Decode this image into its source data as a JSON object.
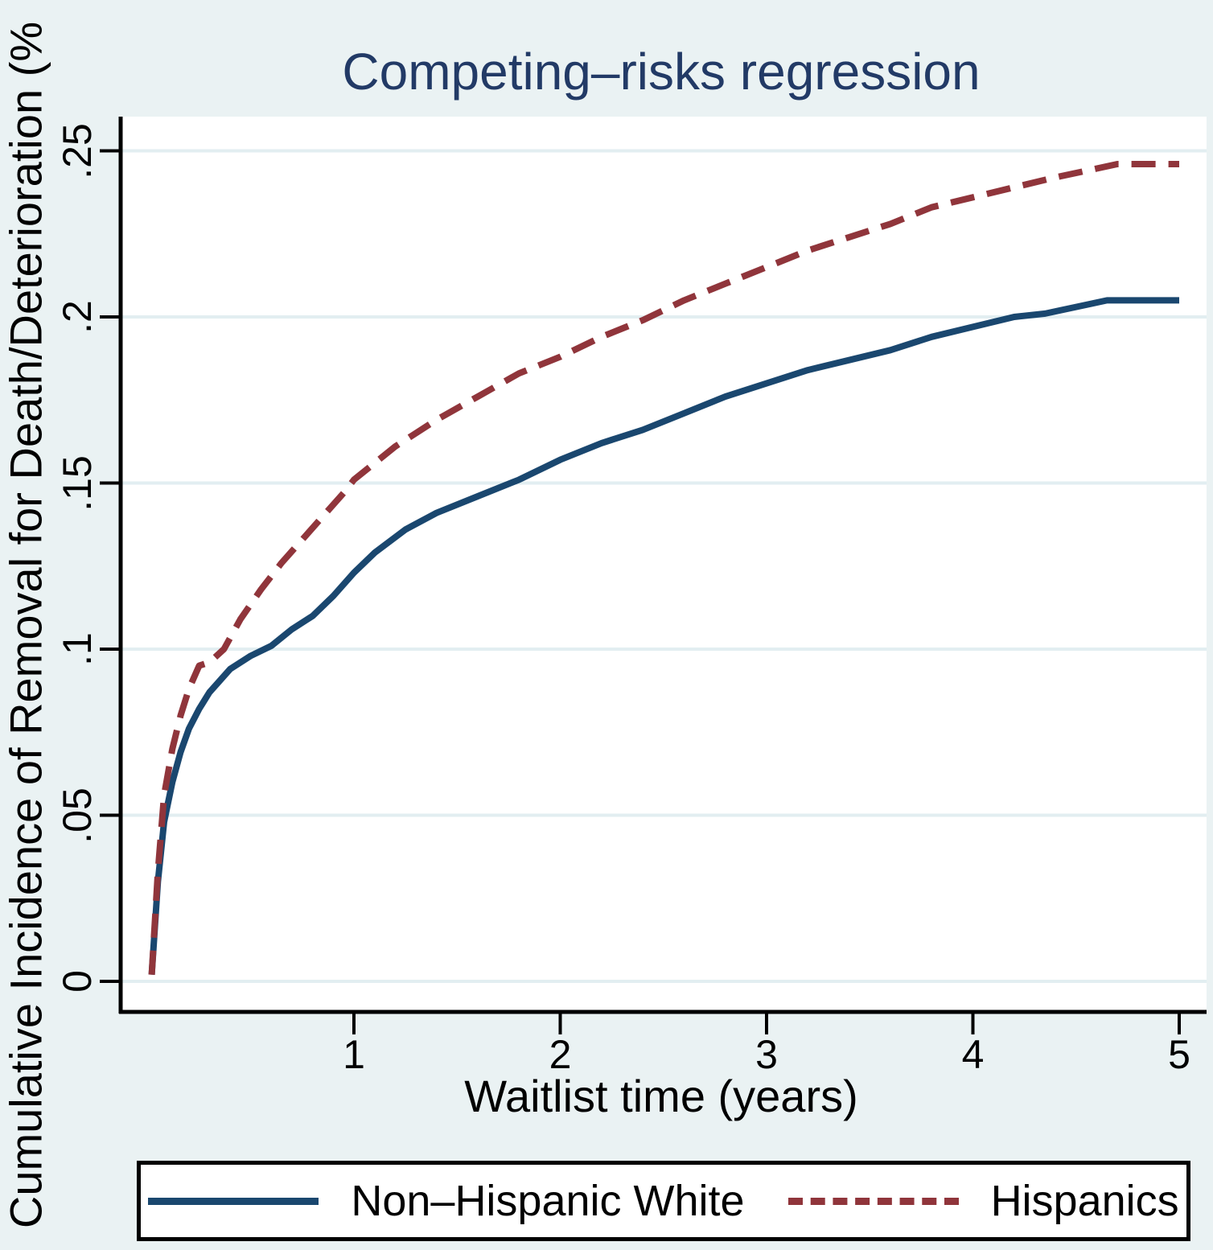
{
  "title": {
    "text": "Competing–risks regression",
    "color": "#223a66"
  },
  "axes": {
    "x": {
      "title": "Waitlist time (years)",
      "tick_labels": [
        "1",
        "2",
        "3",
        "4",
        "5"
      ],
      "tick_values": [
        1,
        2,
        3,
        4,
        5
      ]
    },
    "y": {
      "title": "Cumulative Incidence of Removal for Death/Deterioration (%",
      "tick_labels": [
        "0",
        ".05",
        ".1",
        ".15",
        ".2",
        ".25"
      ],
      "tick_values": [
        0,
        0.05,
        0.1,
        0.15,
        0.2,
        0.25
      ]
    }
  },
  "legend": {
    "items": [
      {
        "label": "Non–Hispanic White",
        "color": "#1a476f",
        "style": "solid"
      },
      {
        "label": "Hispanics",
        "color": "#90353b",
        "style": "dashed"
      }
    ]
  },
  "colors": {
    "background": "#eaf2f3",
    "plot_background": "#ffffff",
    "grid": "#e2eef1",
    "axis": "#000000",
    "navy": "#1a476f",
    "maroon": "#90353b"
  },
  "chart_data": {
    "type": "line",
    "title": "Competing–risks regression",
    "xlabel": "Waitlist time (years)",
    "ylabel": "Cumulative Incidence of Removal for Death/Deterioration (%",
    "xlim": [
      0,
      5
    ],
    "ylim": [
      0,
      0.25
    ],
    "grid": "horizontal",
    "legend_position": "bottom",
    "series": [
      {
        "name": "Non–Hispanic White",
        "color": "#1a476f",
        "style": "solid",
        "x": [
          0.02,
          0.05,
          0.08,
          0.12,
          0.16,
          0.2,
          0.25,
          0.3,
          0.4,
          0.5,
          0.6,
          0.7,
          0.8,
          0.9,
          1.0,
          1.1,
          1.25,
          1.4,
          1.6,
          1.8,
          2.0,
          2.2,
          2.4,
          2.6,
          2.8,
          3.0,
          3.2,
          3.4,
          3.6,
          3.8,
          4.0,
          4.2,
          4.35,
          4.5,
          4.65,
          5.0
        ],
        "y": [
          0.002,
          0.03,
          0.048,
          0.06,
          0.069,
          0.076,
          0.082,
          0.087,
          0.094,
          0.098,
          0.101,
          0.106,
          0.11,
          0.116,
          0.123,
          0.129,
          0.136,
          0.141,
          0.146,
          0.151,
          0.157,
          0.162,
          0.166,
          0.171,
          0.176,
          0.18,
          0.184,
          0.187,
          0.19,
          0.194,
          0.197,
          0.2,
          0.201,
          0.203,
          0.205,
          0.205
        ]
      },
      {
        "name": "Hispanics",
        "color": "#90353b",
        "style": "dashed",
        "x": [
          0.02,
          0.05,
          0.08,
          0.12,
          0.16,
          0.2,
          0.25,
          0.3,
          0.37,
          0.45,
          0.55,
          0.65,
          0.75,
          0.85,
          0.95,
          1.0,
          1.2,
          1.4,
          1.6,
          1.8,
          2.0,
          2.2,
          2.4,
          2.6,
          2.8,
          3.0,
          3.2,
          3.4,
          3.6,
          3.8,
          4.0,
          4.2,
          4.4,
          4.55,
          4.7,
          5.0
        ],
        "y": [
          0.002,
          0.033,
          0.056,
          0.07,
          0.08,
          0.088,
          0.095,
          0.096,
          0.1,
          0.109,
          0.118,
          0.126,
          0.133,
          0.14,
          0.147,
          0.151,
          0.161,
          0.169,
          0.176,
          0.183,
          0.188,
          0.194,
          0.199,
          0.205,
          0.21,
          0.215,
          0.22,
          0.224,
          0.228,
          0.233,
          0.236,
          0.239,
          0.242,
          0.244,
          0.246,
          0.246
        ]
      }
    ]
  }
}
